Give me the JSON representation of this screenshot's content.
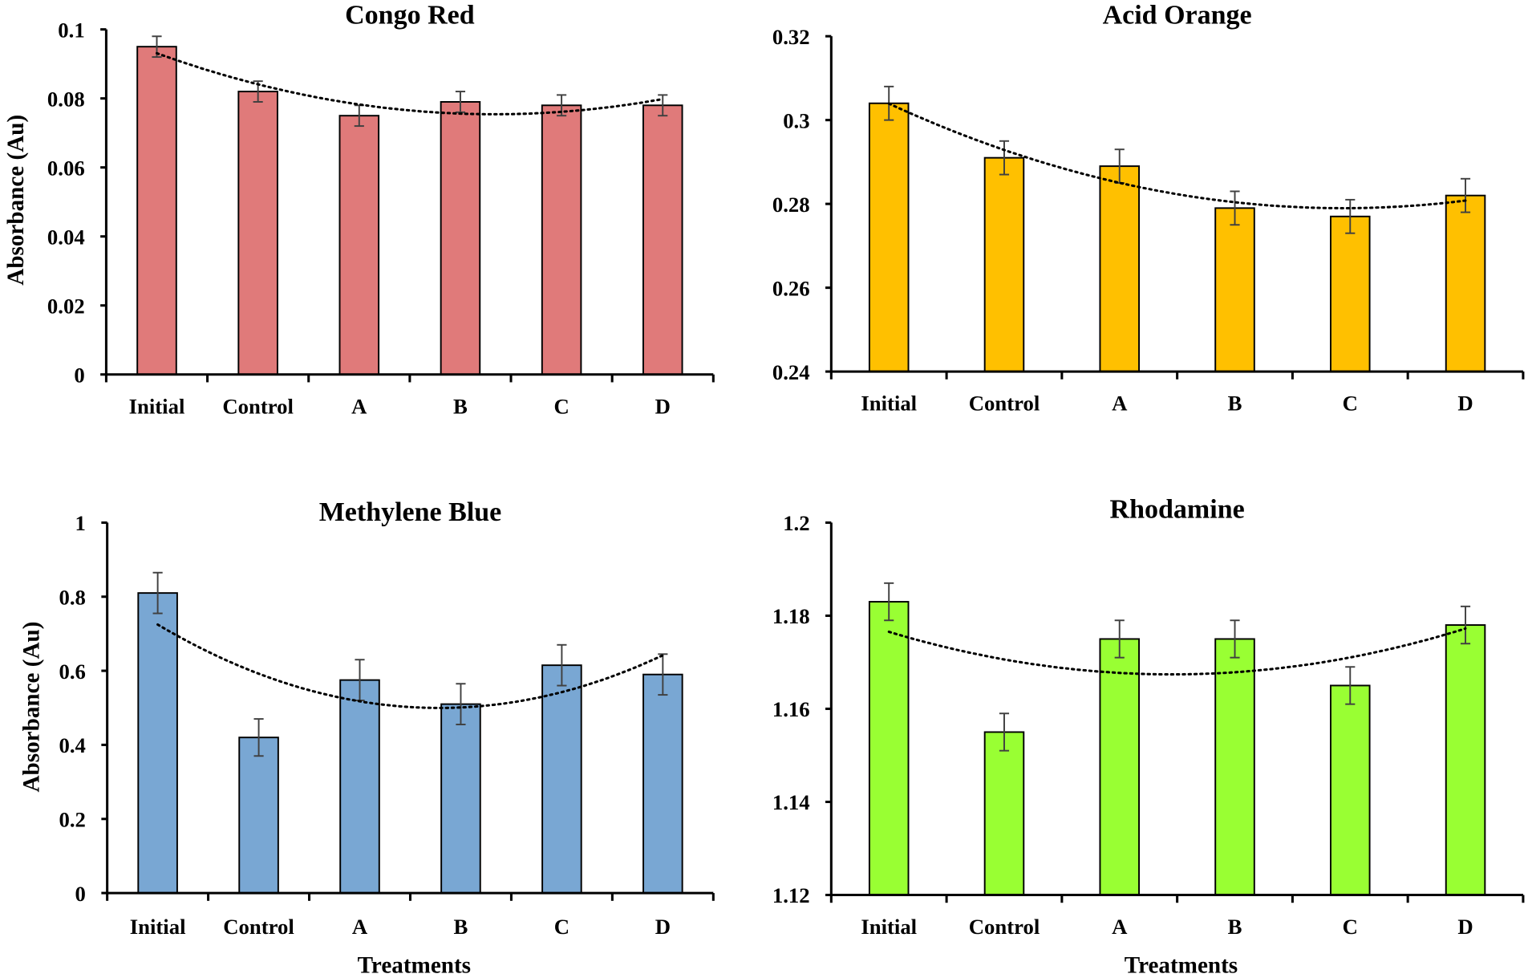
{
  "chart_data": [
    {
      "type": "bar",
      "title": "Congo Red",
      "categories": [
        "Initial",
        "Control",
        "A",
        "B",
        "C",
        "D"
      ],
      "values": [
        0.095,
        0.082,
        0.075,
        0.079,
        0.078,
        0.078
      ],
      "errors": [
        0.003,
        0.003,
        0.003,
        0.003,
        0.003,
        0.003
      ],
      "ylim": [
        0,
        0.1
      ],
      "yticks": [
        "0",
        "0.02",
        "0.04",
        "0.06",
        "0.08",
        "0.1"
      ],
      "ylabel": "Absorbance (Au)",
      "xlabel": "",
      "color": "#E07A7A",
      "trendline": "polynomial (order 2), dotted"
    },
    {
      "type": "bar",
      "title": "Acid Orange",
      "categories": [
        "Initial",
        "Control",
        "A",
        "B",
        "C",
        "D"
      ],
      "values": [
        0.304,
        0.291,
        0.289,
        0.279,
        0.277,
        0.282
      ],
      "errors": [
        0.004,
        0.004,
        0.004,
        0.004,
        0.004,
        0.004
      ],
      "ylim": [
        0.24,
        0.32
      ],
      "yticks": [
        "0.24",
        "0.26",
        "0.28",
        "0.3",
        "0.32"
      ],
      "ylabel": "",
      "xlabel": "",
      "color": "#FFC000",
      "trendline": "polynomial (order 2), dotted"
    },
    {
      "type": "bar",
      "title": "Methylene Blue",
      "categories": [
        "Initial",
        "Control",
        "A",
        "B",
        "C",
        "D"
      ],
      "values": [
        0.81,
        0.42,
        0.575,
        0.51,
        0.615,
        0.59
      ],
      "errors": [
        0.055,
        0.05,
        0.055,
        0.055,
        0.055,
        0.055
      ],
      "ylim": [
        0,
        1
      ],
      "yticks": [
        "0",
        "0.2",
        "0.4",
        "0.6",
        "0.8",
        "1"
      ],
      "ylabel": "Absorbance (Au)",
      "xlabel": "Treatments",
      "color": "#79A7D3",
      "trendline": "polynomial (order 2), dotted"
    },
    {
      "type": "bar",
      "title": "Rhodamine",
      "categories": [
        "Initial",
        "Control",
        "A",
        "B",
        "C",
        "D"
      ],
      "values": [
        1.183,
        1.155,
        1.175,
        1.175,
        1.165,
        1.178
      ],
      "errors": [
        0.004,
        0.004,
        0.004,
        0.004,
        0.004,
        0.004
      ],
      "ylim": [
        1.12,
        1.2
      ],
      "yticks": [
        "1.12",
        "1.14",
        "1.16",
        "1.18",
        "1.2"
      ],
      "ylabel": "",
      "xlabel": "Treatments",
      "color": "#99FF33",
      "trendline": "polynomial (order 2), dotted"
    }
  ]
}
